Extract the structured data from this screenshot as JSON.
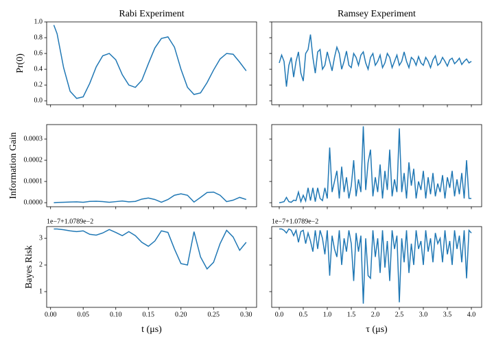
{
  "chart_data": [
    {
      "type": "line",
      "title": "Rabi Experiment",
      "xlabel": "t (μs)",
      "color": "#1f77b4",
      "x": [
        0.005,
        0.01,
        0.02,
        0.03,
        0.04,
        0.05,
        0.06,
        0.07,
        0.08,
        0.09,
        0.1,
        0.11,
        0.12,
        0.13,
        0.14,
        0.15,
        0.16,
        0.17,
        0.18,
        0.19,
        0.2,
        0.21,
        0.22,
        0.23,
        0.24,
        0.25,
        0.26,
        0.27,
        0.28,
        0.29,
        0.3
      ],
      "xlim": [
        -0.006,
        0.316
      ],
      "xticks": [
        {
          "value": 0,
          "label": "0.00"
        },
        0.05,
        {
          "value": 0.1,
          "label": "0.10"
        },
        0.15,
        {
          "value": 0.2,
          "label": "0.20"
        },
        0.25,
        {
          "value": 0.3,
          "label": "0.30"
        }
      ],
      "panels": [
        {
          "ylabel": "Pr(0)",
          "ylim": [
            -0.05,
            1.0
          ],
          "yticks": [
            {
              "value": 0,
              "label": "0.0"
            },
            0.2,
            0.4,
            0.6,
            0.8,
            {
              "value": 1,
              "label": "1.0"
            }
          ],
          "values": [
            0.96,
            0.85,
            0.42,
            0.12,
            0.03,
            0.05,
            0.22,
            0.43,
            0.57,
            0.6,
            0.52,
            0.33,
            0.2,
            0.17,
            0.26,
            0.47,
            0.67,
            0.79,
            0.81,
            0.68,
            0.4,
            0.17,
            0.08,
            0.1,
            0.23,
            0.39,
            0.53,
            0.6,
            0.59,
            0.49,
            0.38
          ]
        },
        {
          "ylabel": "Information Gain",
          "ylim": [
            -1.9e-05,
            0.000368
          ],
          "yticks": [
            {
              "value": 0,
              "label": "0.0000"
            },
            0.0001,
            0.0002,
            0.0003
          ],
          "values": [
            0,
            1e-06,
            2e-06,
            3e-06,
            4e-06,
            2e-06,
            6e-06,
            7e-06,
            5e-06,
            2e-06,
            5e-06,
            8e-06,
            4e-06,
            6e-06,
            1.7e-05,
            2.2e-05,
            1.5e-05,
            2e-06,
            1.5e-05,
            3.5e-05,
            4.2e-05,
            3.5e-05,
            3e-06,
            2.5e-05,
            4.8e-05,
            5e-05,
            3.5e-05,
            5e-06,
            1.2e-05,
            2.5e-05,
            1.5e-05
          ]
        },
        {
          "ylabel": "Bayes Risk",
          "offset_text": "1e−7+1.0789e−2",
          "ylim": [
            0.41,
            3.44
          ],
          "yticks": [
            1,
            2,
            3
          ],
          "values": [
            3.35,
            3.35,
            3.32,
            3.28,
            3.25,
            3.28,
            3.15,
            3.12,
            3.2,
            3.33,
            3.22,
            3.1,
            3.25,
            3.1,
            2.85,
            2.7,
            2.9,
            3.28,
            3.22,
            2.6,
            2.05,
            2.0,
            3.25,
            2.3,
            1.85,
            2.1,
            2.8,
            3.3,
            3.05,
            2.55,
            2.85
          ]
        }
      ]
    },
    {
      "type": "line",
      "title": "Ramsey Experiment",
      "xlabel": "τ (μs)",
      "color": "#1f77b4",
      "x": [
        0,
        0.05,
        0.1,
        0.15,
        0.2,
        0.25,
        0.3,
        0.35,
        0.4,
        0.45,
        0.5,
        0.55,
        0.6,
        0.65,
        0.7,
        0.75,
        0.8,
        0.85,
        0.9,
        0.95,
        1,
        1.05,
        1.1,
        1.15,
        1.2,
        1.25,
        1.3,
        1.35,
        1.4,
        1.45,
        1.5,
        1.55,
        1.6,
        1.65,
        1.7,
        1.75,
        1.8,
        1.85,
        1.9,
        1.95,
        2,
        2.05,
        2.1,
        2.15,
        2.2,
        2.25,
        2.3,
        2.35,
        2.4,
        2.45,
        2.5,
        2.55,
        2.6,
        2.65,
        2.7,
        2.75,
        2.8,
        2.85,
        2.9,
        2.95,
        3,
        3.05,
        3.1,
        3.15,
        3.2,
        3.25,
        3.3,
        3.35,
        3.4,
        3.45,
        3.5,
        3.55,
        3.6,
        3.65,
        3.7,
        3.75,
        3.8,
        3.85,
        3.9,
        3.95,
        4
      ],
      "xlim": [
        -0.157,
        4.214
      ],
      "xticks": [
        {
          "value": 0,
          "label": "0.0"
        },
        0.5,
        {
          "value": 1,
          "label": "1.0"
        },
        1.5,
        {
          "value": 2,
          "label": "2.0"
        },
        2.5,
        {
          "value": 3,
          "label": "3.0"
        },
        3.5,
        {
          "value": 4,
          "label": "4.0"
        }
      ],
      "panels": [
        {
          "ylim": [
            -0.05,
            1.0
          ],
          "yticks": [
            {
              "value": 0,
              "label": "0.0"
            },
            0.2,
            0.4,
            0.6,
            0.8,
            {
              "value": 1,
              "label": "1.0"
            }
          ],
          "values": [
            0.48,
            0.58,
            0.5,
            0.18,
            0.45,
            0.55,
            0.3,
            0.5,
            0.62,
            0.35,
            0.25,
            0.6,
            0.65,
            0.84,
            0.55,
            0.35,
            0.62,
            0.65,
            0.4,
            0.45,
            0.62,
            0.5,
            0.38,
            0.55,
            0.68,
            0.6,
            0.4,
            0.5,
            0.63,
            0.45,
            0.42,
            0.6,
            0.55,
            0.45,
            0.58,
            0.62,
            0.48,
            0.4,
            0.55,
            0.6,
            0.45,
            0.5,
            0.58,
            0.42,
            0.48,
            0.6,
            0.55,
            0.42,
            0.5,
            0.58,
            0.45,
            0.5,
            0.62,
            0.5,
            0.42,
            0.55,
            0.52,
            0.45,
            0.56,
            0.48,
            0.45,
            0.55,
            0.5,
            0.42,
            0.52,
            0.57,
            0.45,
            0.48,
            0.55,
            0.5,
            0.44,
            0.52,
            0.54,
            0.47,
            0.5,
            0.54,
            0.46,
            0.5,
            0.53,
            0.48,
            0.5
          ]
        },
        {
          "ylim": [
            -1.9e-05,
            0.000368
          ],
          "yticks": [
            {
              "value": 0,
              "label": "0.0000"
            },
            0.0001,
            0.0002,
            0.0003
          ],
          "values": [
            0,
            2e-06,
            5e-06,
            2.5e-05,
            5e-06,
            2e-06,
            1.2e-05,
            1e-05,
            5e-05,
            5e-06,
            3.5e-05,
            8e-06,
            7e-05,
            1e-05,
            7e-05,
            5e-06,
            7e-05,
            2e-05,
            1e-05,
            7e-05,
            2e-05,
            0.00026,
            5e-05,
            0.0001,
            0.00015,
            2e-05,
            0.00017,
            5e-05,
            0.00012,
            2e-05,
            8e-05,
            0.0002,
            3e-05,
            0.00011,
            5e-05,
            0.00036,
            6e-05,
            0.00019,
            0.00025,
            3e-05,
            0.00012,
            5e-05,
            0.00018,
            2e-05,
            0.00015,
            6e-05,
            0.00025,
            3e-05,
            0.00011,
            5e-05,
            0.00035,
            5e-05,
            0.00014,
            2e-05,
            0.00019,
            8e-05,
            0.00016,
            2e-05,
            0.0001,
            6e-05,
            0.00015,
            2e-05,
            0.00012,
            4e-05,
            0.00014,
            3e-05,
            9e-05,
            5e-05,
            0.00013,
            2e-05,
            0.00012,
            7e-05,
            0.00015,
            3e-05,
            0.00011,
            4e-05,
            0.00014,
            2e-05,
            0.0002,
            2e-05,
            2e-05
          ]
        },
        {
          "offset_text": "1e−7+1.0789e−2",
          "ylim": [
            0.41,
            3.44
          ],
          "yticks": [
            1,
            2,
            3
          ],
          "values": [
            3.35,
            3.35,
            3.3,
            3.2,
            3.35,
            3.3,
            3.1,
            3.3,
            2.85,
            3.25,
            3.3,
            2.8,
            3.2,
            2.9,
            2.5,
            3.3,
            2.6,
            3.3,
            3.0,
            2.4,
            3.3,
            1.6,
            3.1,
            2.6,
            2.3,
            3.3,
            2.0,
            3.0,
            2.5,
            3.3,
            2.8,
            1.4,
            3.2,
            2.5,
            3.1,
            0.55,
            3.0,
            1.6,
            1.5,
            3.3,
            2.3,
            3.0,
            1.7,
            3.3,
            1.9,
            2.9,
            1.4,
            3.3,
            2.6,
            3.1,
            0.6,
            3.0,
            2.1,
            3.3,
            1.7,
            2.8,
            2.0,
            3.3,
            2.6,
            2.9,
            2.0,
            3.3,
            2.5,
            3.0,
            2.1,
            3.2,
            2.8,
            3.0,
            2.1,
            3.3,
            2.4,
            2.9,
            2.0,
            3.3,
            2.6,
            3.1,
            2.1,
            3.3,
            1.5,
            3.3,
            3.2
          ]
        }
      ]
    }
  ]
}
